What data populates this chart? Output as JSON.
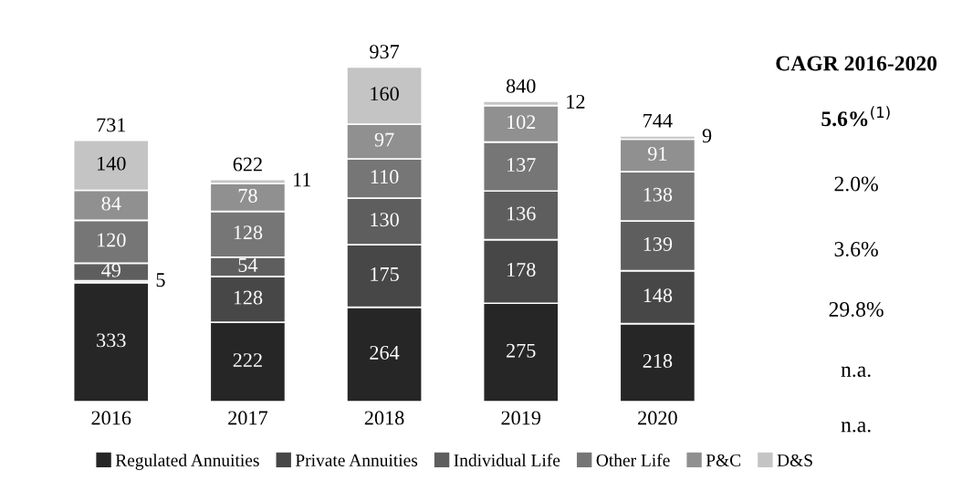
{
  "chart_data": {
    "type": "bar",
    "stacked": true,
    "data_labels": true,
    "legend": "bottom",
    "grid": false,
    "categories": [
      "2016",
      "2017",
      "2018",
      "2019",
      "2020"
    ],
    "series": [
      {
        "name": "Regulated Annuities",
        "color": "#262626",
        "values": [
          333,
          222,
          264,
          275,
          218
        ]
      },
      {
        "name": "Private Annuities",
        "color": "#474747",
        "values": [
          5,
          128,
          175,
          178,
          148
        ]
      },
      {
        "name": "Individual Life",
        "color": "#5e5e5e",
        "values": [
          49,
          54,
          130,
          136,
          139
        ]
      },
      {
        "name": "Other Life",
        "color": "#767676",
        "values": [
          120,
          128,
          110,
          137,
          138
        ]
      },
      {
        "name": "P&C",
        "color": "#909090",
        "values": [
          84,
          78,
          97,
          102,
          91
        ]
      },
      {
        "name": "D&S",
        "color": "#c4c4c4",
        "values": [
          140,
          11,
          160,
          12,
          9
        ]
      }
    ],
    "totals": [
      "731",
      "622",
      "937",
      "840",
      "744"
    ],
    "tick_labels": "x",
    "annotations": [
      "CAGR 2016-2020",
      "5.6%$^{(1)}$",
      "2.0%",
      "3.6%",
      "29.8%",
      "n.a.",
      "n.a."
    ]
  }
}
